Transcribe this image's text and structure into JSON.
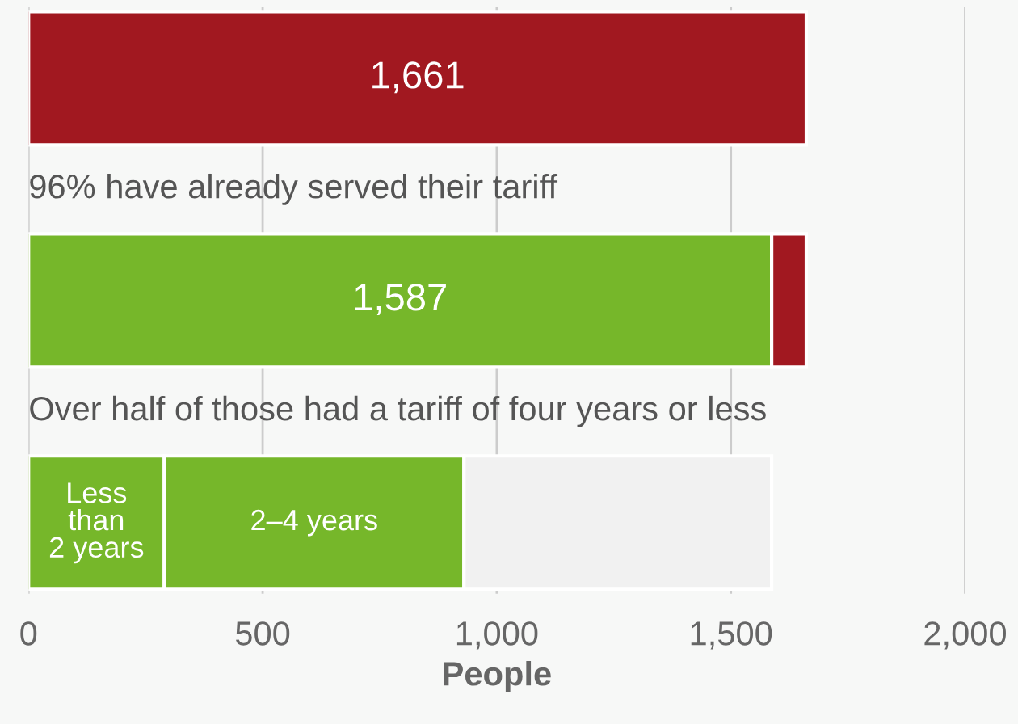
{
  "chart_data": {
    "type": "bar",
    "orientation": "horizontal",
    "stacked": true,
    "categories": [
      null,
      null,
      null
    ],
    "series": [
      {
        "colors": [
          "#a11820",
          "#76b72a",
          "#76b72a"
        ],
        "values": [
          1661,
          1587,
          290
        ],
        "value_labels": [
          "1,661",
          "1,587",
          "Less\nthan\n2 years"
        ]
      },
      {
        "colors": [
          "#a11820",
          "#a11820",
          "#76b72a"
        ],
        "values": [
          null,
          74,
          640
        ],
        "value_labels": [
          null,
          null,
          "2–4 years"
        ]
      },
      {
        "colors": [
          "#f1f1f1",
          "#f1f1f1",
          "#f1f1f1"
        ],
        "values": [
          null,
          null,
          657
        ],
        "value_labels": [
          null,
          null,
          null
        ]
      }
    ],
    "annotations": [
      "96% have already served their tariff",
      "Over half of those had a tariff of four years or less"
    ],
    "xlabel": "People",
    "xlim": [
      0,
      2000
    ],
    "xticks": [
      0,
      500,
      {
        "value": 1000,
        "label": "1,000"
      },
      {
        "value": 1500,
        "label": "1,500"
      },
      {
        "value": 2000,
        "label": "2,000"
      }
    ],
    "grid": "x",
    "tick_labels": "x"
  }
}
